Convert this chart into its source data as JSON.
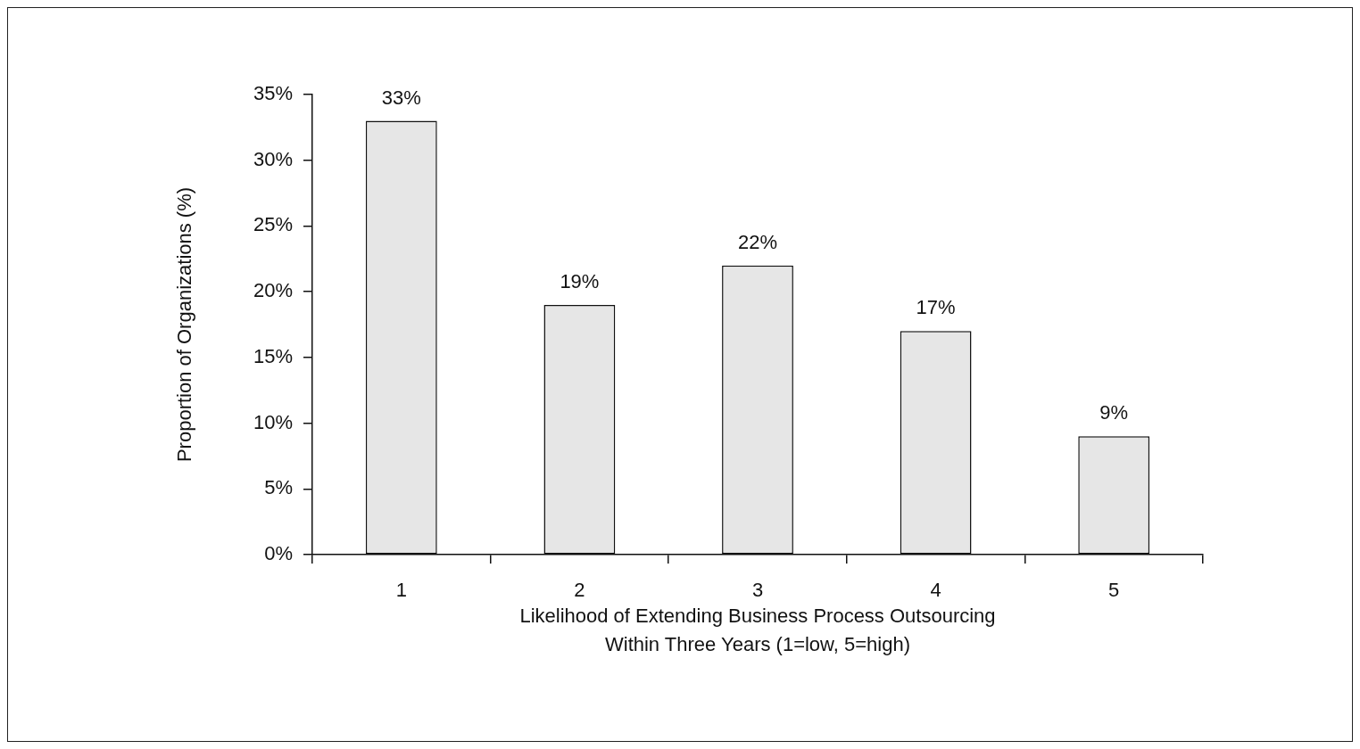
{
  "chart_data": {
    "type": "bar",
    "categories": [
      "1",
      "2",
      "3",
      "4",
      "5"
    ],
    "values": [
      33,
      19,
      22,
      17,
      9
    ],
    "value_labels": [
      "33%",
      "19%",
      "22%",
      "17%",
      "9%"
    ],
    "color": "#e6e6e6",
    "ylim": [
      0,
      35
    ],
    "yticks": [
      {
        "value": 0,
        "label": "0%"
      },
      {
        "value": 5,
        "label": "5%"
      },
      {
        "value": 10,
        "label": "10%"
      },
      {
        "value": 15,
        "label": "15%"
      },
      {
        "value": 20,
        "label": "20%"
      },
      {
        "value": 25,
        "label": "25%"
      },
      {
        "value": 30,
        "label": "30%"
      },
      {
        "value": 35,
        "label": "35%"
      }
    ],
    "xlabel": "Likelihood of Extending Business Process Outsourcing\nWithin Three Years (1=low, 5=high)",
    "ylabel": "Proportion of Organizations (%)",
    "grid": false,
    "legend": false
  }
}
